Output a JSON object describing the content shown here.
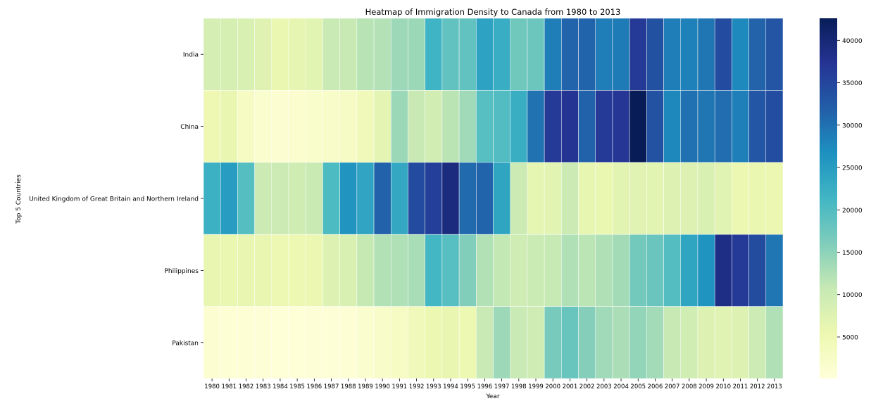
{
  "chart_data": {
    "type": "heatmap",
    "title": "Heatmap of Immigration Density to Canada from 1980 to 2013",
    "xlabel": "Year",
    "ylabel": "Top 5 Countries",
    "x": [
      1980,
      1981,
      1982,
      1983,
      1984,
      1985,
      1986,
      1987,
      1988,
      1989,
      1990,
      1991,
      1992,
      1993,
      1994,
      1995,
      1996,
      1997,
      1998,
      1999,
      2000,
      2001,
      2002,
      2003,
      2004,
      2005,
      2006,
      2007,
      2008,
      2009,
      2010,
      2011,
      2012,
      2013
    ],
    "y": [
      "India",
      "China",
      "United Kingdom of Great Britain and Northern Ireland",
      "Philippines",
      "Pakistan"
    ],
    "values": [
      [
        8900,
        8700,
        8200,
        7400,
        5900,
        6300,
        7000,
        10400,
        10600,
        11800,
        12100,
        13800,
        14000,
        21600,
        18600,
        18500,
        24200,
        22600,
        17300,
        17600,
        28600,
        31300,
        31300,
        28600,
        29000,
        36500,
        33600,
        28700,
        28300,
        29500,
        34200,
        27500,
        31500,
        33100
      ],
      [
        5100,
        6000,
        3100,
        1500,
        1000,
        1400,
        1900,
        2300,
        2800,
        4400,
        6700,
        14000,
        10600,
        9300,
        11600,
        13600,
        19500,
        19900,
        22500,
        29900,
        36700,
        37400,
        31600,
        36700,
        37000,
        42600,
        33500,
        27600,
        30000,
        29600,
        30400,
        28500,
        33000,
        34100
      ],
      [
        22000,
        25000,
        19600,
        10000,
        10200,
        9600,
        10300,
        20300,
        26100,
        23900,
        31600,
        23300,
        34400,
        35900,
        39200,
        30700,
        31400,
        23800,
        10200,
        6500,
        7000,
        10200,
        6200,
        5900,
        6900,
        7200,
        7000,
        7700,
        7600,
        8200,
        7100,
        5600,
        5900,
        5600
      ],
      [
        6000,
        5900,
        6100,
        6000,
        5300,
        5300,
        5600,
        7600,
        8200,
        10800,
        12300,
        12500,
        13000,
        21200,
        19500,
        15900,
        12200,
        11000,
        9800,
        10100,
        10700,
        12400,
        11500,
        12500,
        13300,
        17000,
        17800,
        19700,
        23800,
        26300,
        38600,
        36700,
        34300,
        29500
      ],
      [
        1000,
        700,
        800,
        600,
        400,
        400,
        600,
        600,
        800,
        1500,
        2200,
        3100,
        4400,
        5500,
        6000,
        5300,
        10500,
        13800,
        10400,
        9700,
        16700,
        18000,
        15600,
        13600,
        12800,
        14600,
        13400,
        10600,
        9400,
        7800,
        7100,
        7600,
        9900,
        12500
      ]
    ],
    "colorbar": {
      "ticks": [
        5000,
        10000,
        15000,
        20000,
        25000,
        30000,
        35000,
        40000
      ],
      "range": [
        100,
        42600
      ],
      "colormap": "YlGnBu"
    },
    "grid": false,
    "legend": "colorbar-right"
  }
}
